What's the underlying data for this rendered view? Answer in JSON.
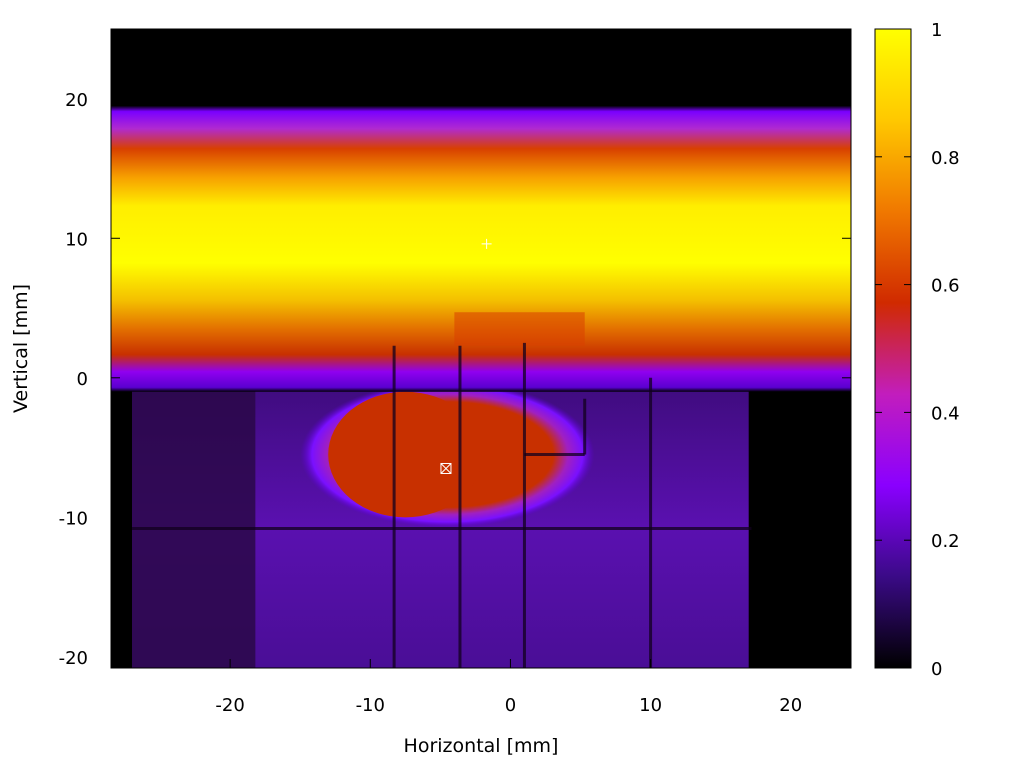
{
  "chart_data": {
    "type": "heatmap",
    "title": "",
    "xlabel": "Horizontal [mm]",
    "ylabel": "Vertical [mm]",
    "xlim": [
      -28.5,
      24.3
    ],
    "ylim": [
      -20.8,
      25
    ],
    "x_ticks": [
      -20,
      -10,
      0,
      10,
      20
    ],
    "x_tick_labels": [
      "-20",
      "-10",
      "0",
      "10",
      "20"
    ],
    "y_ticks": [
      -20,
      -10,
      0,
      10,
      20
    ],
    "y_tick_labels": [
      "-20",
      "-10",
      "0",
      "10",
      "20"
    ],
    "colorbar": {
      "range": [
        0,
        1
      ],
      "ticks": [
        0,
        0.2,
        0.4,
        0.6,
        0.8,
        1
      ],
      "tick_labels": [
        "0",
        "0.2",
        "0.4",
        "0.6",
        "0.8",
        "1"
      ],
      "colormap": [
        "#000000",
        "#3a0a86",
        "#8a00ff",
        "#c21dbd",
        "#d02a00",
        "#f07800",
        "#ffc800",
        "#ffff00"
      ]
    },
    "features": [
      {
        "name": "upper band",
        "x_range": [
          -28.5,
          24.3
        ],
        "y_center": 10.5,
        "y_extent": [
          -1,
          19.5
        ],
        "peak_value": 1.0
      },
      {
        "name": "central blob",
        "x_range": [
          -15,
          6
        ],
        "y_center": -5.5,
        "y_extent": [
          -11,
          -0.5
        ],
        "peak_value": 0.55
      },
      {
        "name": "lower plateau",
        "x_range": [
          -27,
          17
        ],
        "y_extent": [
          -20.8,
          -0.5
        ],
        "value": 0.2
      }
    ],
    "markers": [
      {
        "symbol": "+",
        "x": -1.7,
        "y": 9.6
      },
      {
        "symbol": "box-x",
        "x": -4.6,
        "y": -6.5
      }
    ],
    "grid": false
  }
}
